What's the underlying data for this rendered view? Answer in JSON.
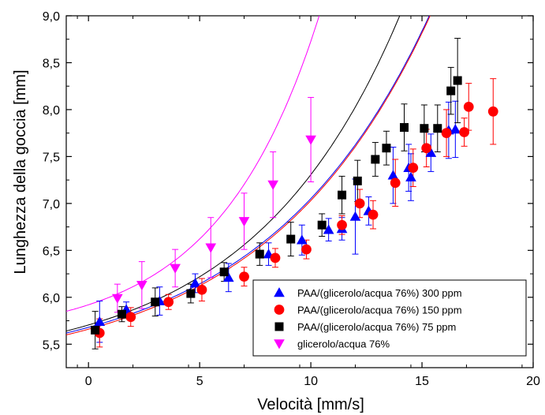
{
  "chart_data": {
    "type": "scatter",
    "title": "",
    "xlabel": "Velocità [mm/s]",
    "ylabel": "Lunghezza della goccia [mm]",
    "xlim": [
      -1,
      20
    ],
    "ylim": [
      5.25,
      9.0
    ],
    "x_ticks": [
      0,
      5,
      10,
      15,
      20
    ],
    "x_tick_labels": [
      "0",
      "5",
      "10",
      "15",
      "20"
    ],
    "y_ticks": [
      5.5,
      6.0,
      6.5,
      7.0,
      7.5,
      8.0,
      8.5,
      9.0
    ],
    "y_tick_labels": [
      "5,5",
      "6,0",
      "6,5",
      "7,0",
      "7,5",
      "8,0",
      "8,5",
      "9,0"
    ],
    "grid": false,
    "legend_position": "bottom-right",
    "series": [
      {
        "name": "PAA/(glicerolo/acqua 76%) 300 ppm",
        "marker": "triangle-up",
        "color": "#0000ff",
        "fit_color": "#0000ff",
        "fit": {
          "a": 5.68,
          "b": 0.48,
          "c": 0.135
        },
        "points": [
          {
            "x": 0.5,
            "y": 5.74,
            "err": 0.22
          },
          {
            "x": 1.7,
            "y": 5.87,
            "err": 0.08
          },
          {
            "x": 3.2,
            "y": 5.96,
            "err": 0.15
          },
          {
            "x": 4.8,
            "y": 6.15,
            "err": 0.1
          },
          {
            "x": 6.3,
            "y": 6.21,
            "err": 0.15
          },
          {
            "x": 8.1,
            "y": 6.46,
            "err": 0.12
          },
          {
            "x": 9.6,
            "y": 6.61,
            "err": 0.16
          },
          {
            "x": 10.8,
            "y": 6.72,
            "err": 0.12
          },
          {
            "x": 11.4,
            "y": 6.73,
            "err": 0.12
          },
          {
            "x": 12.0,
            "y": 6.86,
            "err": 0.4
          },
          {
            "x": 12.6,
            "y": 6.92,
            "err": 0.15
          },
          {
            "x": 13.7,
            "y": 7.3,
            "err": 0.3
          },
          {
            "x": 14.5,
            "y": 7.28,
            "err": 0.25
          },
          {
            "x": 14.4,
            "y": 7.38,
            "err": 0.25
          },
          {
            "x": 15.4,
            "y": 7.54,
            "err": 0.2
          },
          {
            "x": 16.2,
            "y": 7.78,
            "err": 0.3
          },
          {
            "x": 16.5,
            "y": 7.79,
            "err": 0.3
          }
        ]
      },
      {
        "name": "PAA/(glicerolo/acqua 76%) 150 ppm",
        "marker": "circle",
        "color": "#ff0000",
        "fit_color": "#ff0000",
        "fit": {
          "a": 5.66,
          "b": 0.48,
          "c": 0.135
        },
        "points": [
          {
            "x": 0.5,
            "y": 5.62,
            "err": 0.15
          },
          {
            "x": 1.9,
            "y": 5.79,
            "err": 0.1
          },
          {
            "x": 3.6,
            "y": 5.95,
            "err": 0.08
          },
          {
            "x": 5.1,
            "y": 6.08,
            "err": 0.12
          },
          {
            "x": 7.0,
            "y": 6.22,
            "err": 0.1
          },
          {
            "x": 8.4,
            "y": 6.42,
            "err": 0.1
          },
          {
            "x": 9.8,
            "y": 6.51,
            "err": 0.1
          },
          {
            "x": 11.4,
            "y": 6.77,
            "err": 0.1
          },
          {
            "x": 12.2,
            "y": 7.0,
            "err": 0.15
          },
          {
            "x": 12.8,
            "y": 6.88,
            "err": 0.15
          },
          {
            "x": 13.8,
            "y": 7.22,
            "err": 0.25
          },
          {
            "x": 14.6,
            "y": 7.38,
            "err": 0.2
          },
          {
            "x": 15.2,
            "y": 7.59,
            "err": 0.2
          },
          {
            "x": 16.1,
            "y": 7.75,
            "err": 0.25
          },
          {
            "x": 16.9,
            "y": 7.76,
            "err": 0.15
          },
          {
            "x": 17.1,
            "y": 8.03,
            "err": 0.25
          },
          {
            "x": 18.2,
            "y": 7.98,
            "err": 0.35
          }
        ]
      },
      {
        "name": "PAA/(glicerolo/acqua 76%) 75 ppm",
        "marker": "square",
        "color": "#000000",
        "fit_color": "#000000",
        "fit": {
          "a": 5.705,
          "b": 0.46,
          "c": 0.15
        },
        "points": [
          {
            "x": 0.3,
            "y": 5.65,
            "err": 0.2
          },
          {
            "x": 1.5,
            "y": 5.82,
            "err": 0.08
          },
          {
            "x": 3.0,
            "y": 5.95,
            "err": 0.15
          },
          {
            "x": 4.6,
            "y": 6.04,
            "err": 0.1
          },
          {
            "x": 6.1,
            "y": 6.27,
            "err": 0.1
          },
          {
            "x": 7.7,
            "y": 6.46,
            "err": 0.12
          },
          {
            "x": 9.1,
            "y": 6.62,
            "err": 0.18
          },
          {
            "x": 10.5,
            "y": 6.77,
            "err": 0.12
          },
          {
            "x": 11.4,
            "y": 7.09,
            "err": 0.2
          },
          {
            "x": 12.1,
            "y": 7.24,
            "err": 0.22
          },
          {
            "x": 12.9,
            "y": 7.47,
            "err": 0.18
          },
          {
            "x": 13.4,
            "y": 7.59,
            "err": 0.18
          },
          {
            "x": 14.2,
            "y": 7.81,
            "err": 0.25
          },
          {
            "x": 15.1,
            "y": 7.8,
            "err": 0.25
          },
          {
            "x": 15.7,
            "y": 7.8,
            "err": 0.25
          },
          {
            "x": 16.3,
            "y": 8.2,
            "err": 0.25
          },
          {
            "x": 16.6,
            "y": 8.31,
            "err": 0.45
          }
        ]
      },
      {
        "name": "glicerolo/acqua 76%",
        "marker": "triangle-down",
        "color": "#ff00ff",
        "fit_color": "#ff00ff",
        "fit": {
          "a": 5.92,
          "b": 0.35,
          "c": 0.22
        },
        "points": [
          {
            "x": 1.3,
            "y": 5.99,
            "err": 0.15
          },
          {
            "x": 2.4,
            "y": 6.13,
            "err": 0.25
          },
          {
            "x": 3.9,
            "y": 6.31,
            "err": 0.2
          },
          {
            "x": 5.5,
            "y": 6.53,
            "err": 0.32
          },
          {
            "x": 7.0,
            "y": 6.81,
            "err": 0.3
          },
          {
            "x": 8.3,
            "y": 7.2,
            "err": 0.35
          },
          {
            "x": 10.0,
            "y": 7.68,
            "err": 0.45
          }
        ]
      }
    ]
  }
}
